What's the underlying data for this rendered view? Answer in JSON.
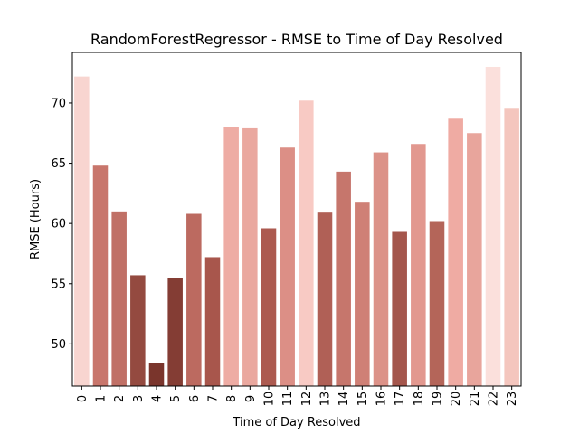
{
  "chart_data": {
    "type": "bar",
    "title": "RandomForestRegressor - RMSE to Time of Day Resolved",
    "xlabel": "Time of Day Resolved",
    "ylabel": "RMSE (Hours)",
    "categories": [
      "0",
      "1",
      "2",
      "3",
      "4",
      "5",
      "6",
      "7",
      "8",
      "9",
      "10",
      "11",
      "12",
      "13",
      "14",
      "15",
      "16",
      "17",
      "18",
      "19",
      "20",
      "21",
      "22",
      "23"
    ],
    "values": [
      72.2,
      64.8,
      61.0,
      55.7,
      48.4,
      55.5,
      60.8,
      57.2,
      68.0,
      67.9,
      59.6,
      66.3,
      70.2,
      60.9,
      64.3,
      61.8,
      65.9,
      59.3,
      66.6,
      60.2,
      68.7,
      67.5,
      73.0,
      69.6
    ],
    "bar_colors": [
      "#f8d5d0",
      "#c8766c",
      "#c07066",
      "#944a40",
      "#7a352c",
      "#843d34",
      "#bc6a60",
      "#a8564c",
      "#eeaca4",
      "#eaa89f",
      "#ac5a50",
      "#dc8f86",
      "#f8cac4",
      "#b06056",
      "#c6766c",
      "#cf8076",
      "#dc9288",
      "#a4564c",
      "#e2988f",
      "#b46559",
      "#efaba3",
      "#e8a59c",
      "#fbe0dc",
      "#f4c6be"
    ],
    "yticks": [
      50,
      55,
      60,
      65,
      70
    ],
    "ylim": [
      46.5,
      74.2
    ],
    "grid": false,
    "legend": "none"
  }
}
